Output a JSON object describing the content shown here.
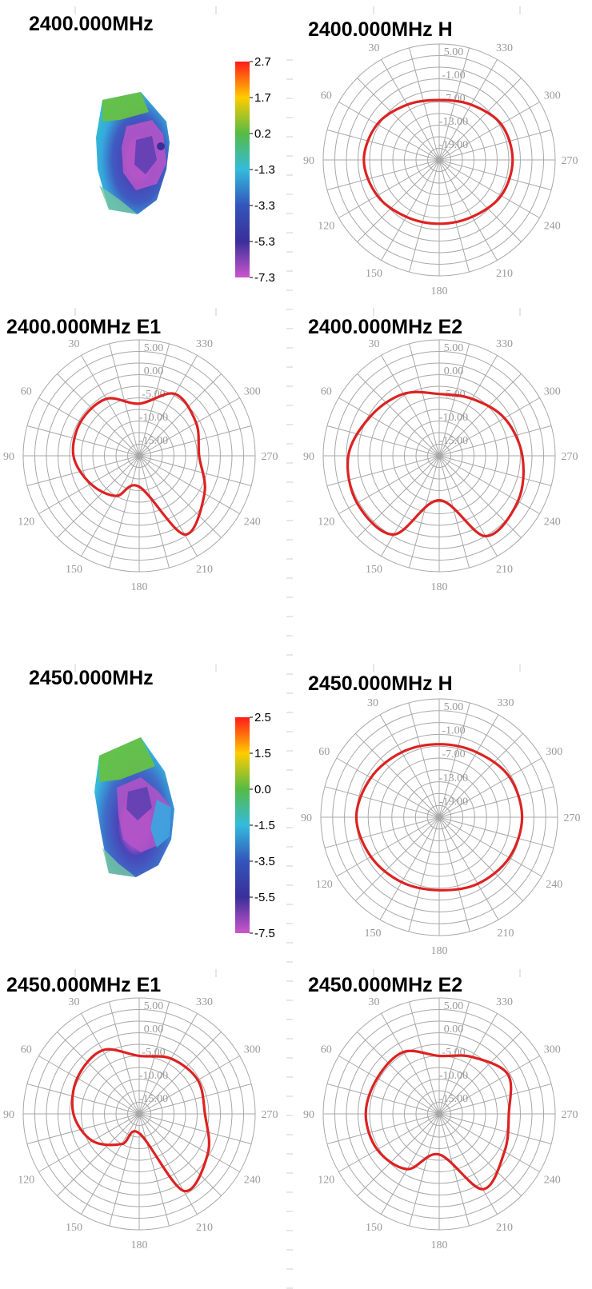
{
  "heatmaps": [
    {
      "title": "2400.000MHz",
      "colorbar": {
        "ticks": [
          "2.7",
          "1.7",
          "0.2",
          "-1.3",
          "-3.3",
          "-5.3",
          "-7.3"
        ],
        "colors": [
          "#ff1a1a",
          "#ffcc00",
          "#55bb44",
          "#33bbdd",
          "#3355bb",
          "#3a2f9a",
          "#cc55cc"
        ]
      }
    },
    {
      "title": "2450.000MHz",
      "colorbar": {
        "ticks": [
          "2.5",
          "1.5",
          "0.0",
          "-1.5",
          "-3.5",
          "-5.5",
          "-7.5"
        ],
        "colors": [
          "#ff1a1a",
          "#ffcc00",
          "#55bb44",
          "#33bbdd",
          "#3355bb",
          "#3a2f9a",
          "#cc55cc"
        ]
      }
    }
  ],
  "chart_data": [
    {
      "type": "polar",
      "title": "2400.000MHz  H",
      "angle_labels": [
        "30",
        "330",
        "60",
        "300",
        "90",
        "270",
        "120",
        "240",
        "150",
        "210",
        "180"
      ],
      "radial_labels": [
        "5.00",
        "-1.00",
        "-7.00",
        "-13.00",
        "-19.00"
      ],
      "radial_range": [
        -25,
        5
      ],
      "series_color": "#dd2222",
      "series": [
        {
          "angles_deg": [
            0,
            30,
            60,
            90,
            120,
            150,
            180,
            210,
            240,
            270,
            300,
            330
          ],
          "values": [
            -9.5,
            -8.5,
            -6.5,
            -5.5,
            -6.5,
            -8.0,
            -8.5,
            -8.0,
            -6.5,
            -6.0,
            -6.5,
            -8.5
          ]
        }
      ]
    },
    {
      "type": "polar",
      "title": "2400.000MHz  E1",
      "angle_labels": [
        "30",
        "330",
        "60",
        "300",
        "90",
        "270",
        "120",
        "240",
        "150",
        "210",
        "180"
      ],
      "radial_labels": [
        "5.00",
        "0.00",
        "-5.00",
        "-10.00",
        "-15.00"
      ],
      "radial_range": [
        -25,
        5
      ],
      "series_color": "#dd2222",
      "series": [
        {
          "angles_deg": [
            0,
            30,
            60,
            90,
            120,
            150,
            180,
            210,
            240,
            270,
            300,
            330
          ],
          "values": [
            -11.5,
            -8.0,
            -7.5,
            -8.0,
            -10.5,
            -13.0,
            -17.0,
            -1.5,
            -5.5,
            -9.5,
            -8.0,
            -6.5
          ]
        }
      ]
    },
    {
      "type": "polar",
      "title": "2400.000MHz  E2",
      "angle_labels": [
        "30",
        "330",
        "60",
        "300",
        "90",
        "270",
        "120",
        "240",
        "150",
        "210",
        "180"
      ],
      "radial_labels": [
        "5.00",
        "0.00",
        "-5.00",
        "-10.00",
        "-15.00"
      ],
      "radial_range": [
        -25,
        5
      ],
      "series_color": "#dd2222",
      "series": [
        {
          "angles_deg": [
            0,
            30,
            60,
            90,
            120,
            150,
            180,
            210,
            240,
            270,
            300,
            330
          ],
          "values": [
            -9.0,
            -6.5,
            -4.5,
            -1.5,
            -0.5,
            -1.5,
            -13.5,
            -1.0,
            -1.5,
            -3.5,
            -5.5,
            -8.0
          ]
        }
      ]
    },
    {
      "type": "polar",
      "title": "2450.000MHz  H",
      "angle_labels": [
        "30",
        "330",
        "60",
        "300",
        "90",
        "270",
        "120",
        "240",
        "150",
        "210",
        "180"
      ],
      "radial_labels": [
        "5.00",
        "-1.00",
        "-7.00",
        "-13.00",
        "-19.00"
      ],
      "radial_range": [
        -25,
        5
      ],
      "series_color": "#dd2222",
      "series": [
        {
          "angles_deg": [
            0,
            30,
            60,
            90,
            120,
            150,
            180,
            210,
            240,
            270,
            300,
            330
          ],
          "values": [
            -6.5,
            -6.0,
            -5.0,
            -4.0,
            -5.0,
            -6.0,
            -6.5,
            -5.5,
            -4.5,
            -4.0,
            -4.5,
            -6.0
          ]
        }
      ]
    },
    {
      "type": "polar",
      "title": "2450.000MHz  E1",
      "angle_labels": [
        "30",
        "330",
        "60",
        "300",
        "90",
        "270",
        "120",
        "240",
        "150",
        "210",
        "180"
      ],
      "radial_labels": [
        "5.00",
        "0.00",
        "-5.00",
        "-10.00",
        "-15.00"
      ],
      "radial_range": [
        -25,
        5
      ],
      "series_color": "#dd2222",
      "series": [
        {
          "angles_deg": [
            0,
            30,
            60,
            90,
            120,
            150,
            180,
            210,
            240,
            270,
            300,
            330
          ],
          "values": [
            -10.0,
            -6.0,
            -6.5,
            -8.0,
            -11.0,
            -16.0,
            -20.0,
            -2.0,
            -4.5,
            -8.0,
            -7.5,
            -8.5
          ]
        }
      ]
    },
    {
      "type": "polar",
      "title": "2450.000MHz  E2",
      "angle_labels": [
        "30",
        "330",
        "60",
        "300",
        "90",
        "270",
        "120",
        "240",
        "150",
        "210",
        "180"
      ],
      "radial_labels": [
        "5.00",
        "0.00",
        "-5.00",
        "-10.00",
        "-15.00"
      ],
      "radial_range": [
        -25,
        5
      ],
      "series_color": "#dd2222",
      "series": [
        {
          "angles_deg": [
            0,
            30,
            60,
            90,
            120,
            150,
            180,
            210,
            240,
            270,
            300,
            330
          ],
          "values": [
            -10.0,
            -6.5,
            -6.5,
            -6.0,
            -6.5,
            -8.5,
            -14.5,
            -2.5,
            -5.5,
            -7.0,
            -4.5,
            -8.0
          ]
        }
      ]
    }
  ]
}
